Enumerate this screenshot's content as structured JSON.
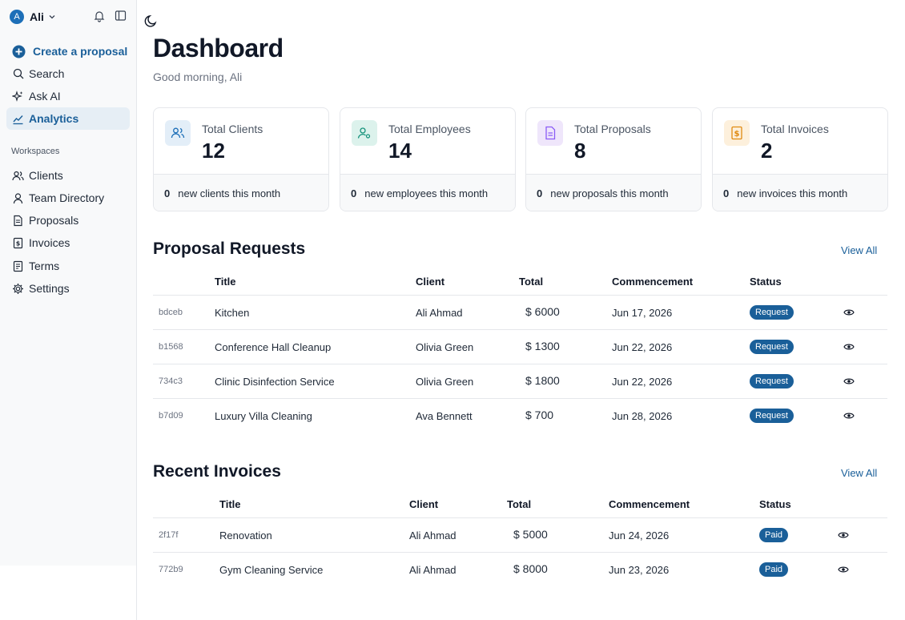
{
  "user": {
    "initial": "A",
    "name": "Ali"
  },
  "nav": {
    "create": "Create a proposal",
    "search": "Search",
    "ask_ai": "Ask AI",
    "analytics": "Analytics",
    "workspaces_label": "Workspaces",
    "clients": "Clients",
    "team": "Team Directory",
    "proposals": "Proposals",
    "invoices": "Invoices",
    "terms": "Terms",
    "settings": "Settings"
  },
  "page": {
    "title": "Dashboard",
    "greeting": "Good morning, Ali"
  },
  "stats": [
    {
      "label": "Total Clients",
      "value": "12",
      "new_count": "0",
      "new_text": "new clients this month"
    },
    {
      "label": "Total Employees",
      "value": "14",
      "new_count": "0",
      "new_text": "new employees this month"
    },
    {
      "label": "Total Proposals",
      "value": "8",
      "new_count": "0",
      "new_text": "new proposals this month"
    },
    {
      "label": "Total Invoices",
      "value": "2",
      "new_count": "0",
      "new_text": "new invoices this month"
    }
  ],
  "proposals": {
    "title": "Proposal Requests",
    "view_all": "View All",
    "headers": {
      "title": "Title",
      "client": "Client",
      "total": "Total",
      "commencement": "Commencement",
      "status": "Status"
    },
    "rows": [
      {
        "id": "bdceb",
        "title": "Kitchen",
        "client": "Ali Ahmad",
        "total": "$ 6000",
        "date": "Jun 17, 2026",
        "status": "Request"
      },
      {
        "id": "b1568",
        "title": "Conference Hall Cleanup",
        "client": "Olivia Green",
        "total": "$ 1300",
        "date": "Jun 22, 2026",
        "status": "Request"
      },
      {
        "id": "734c3",
        "title": "Clinic Disinfection Service",
        "client": "Olivia Green",
        "total": "$ 1800",
        "date": "Jun 22, 2026",
        "status": "Request"
      },
      {
        "id": "b7d09",
        "title": "Luxury Villa Cleaning",
        "client": "Ava Bennett",
        "total": "$ 700",
        "date": "Jun 28, 2026",
        "status": "Request"
      }
    ]
  },
  "invoices": {
    "title": "Recent Invoices",
    "view_all": "View All",
    "headers": {
      "title": "Title",
      "client": "Client",
      "total": "Total",
      "commencement": "Commencement",
      "status": "Status"
    },
    "rows": [
      {
        "id": "2f17f",
        "title": "Renovation",
        "client": "Ali Ahmad",
        "total": "$ 5000",
        "date": "Jun 24, 2026",
        "status": "Paid"
      },
      {
        "id": "772b9",
        "title": "Gym Cleaning Service",
        "client": "Ali Ahmad",
        "total": "$ 8000",
        "date": "Jun 23, 2026",
        "status": "Paid"
      }
    ]
  },
  "colors": {
    "accent": "#1a5f99",
    "sidebar_bg": "#f8f9fa",
    "active_bg": "#e6eef5"
  }
}
